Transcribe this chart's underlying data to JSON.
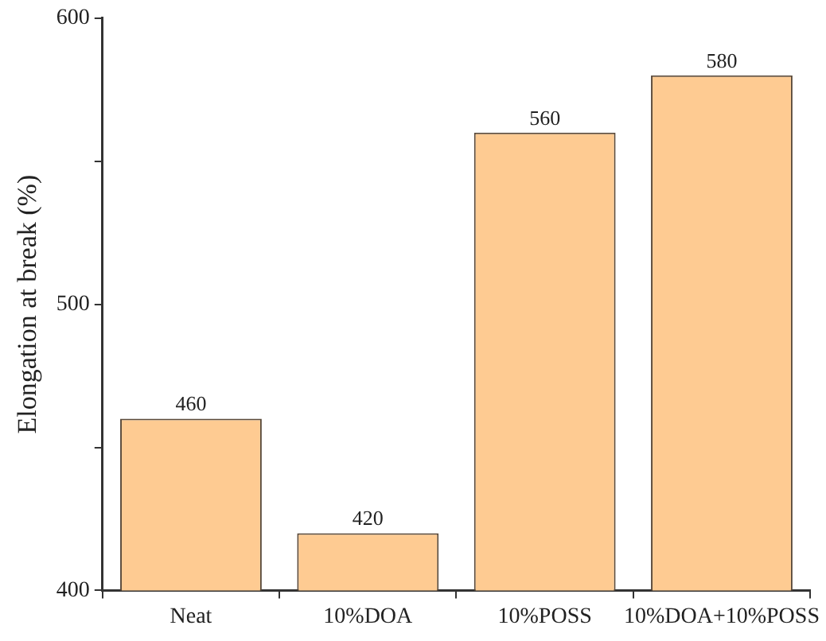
{
  "chart_data": {
    "type": "bar",
    "ylabel": "Elongation at break (%)",
    "categories": [
      "Neat",
      "10%DOA",
      "10%POSS",
      "10%DOA+10%POSS"
    ],
    "values": [
      460,
      420,
      560,
      580
    ],
    "color": "#fecb92",
    "ylim": [
      400,
      600
    ],
    "yticks": [
      400,
      {
        "value": 450,
        "label": null
      },
      500,
      {
        "value": 550,
        "label": null
      },
      600
    ],
    "data_labels": true,
    "grid": false,
    "legend": false
  }
}
